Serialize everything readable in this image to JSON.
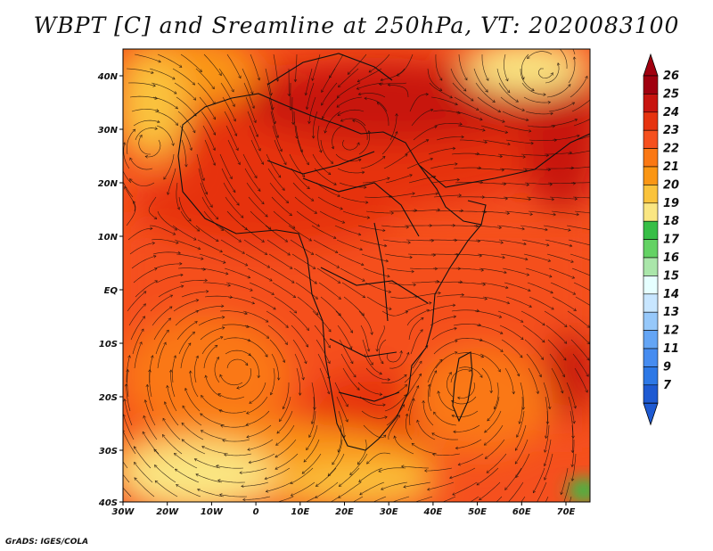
{
  "title": "WBPT [C] and Sreamline at 250hPa, VT: 2020083100",
  "credit": "GrADS: IGES/COLA",
  "latitude_labels": [
    "40N",
    "30N",
    "20N",
    "10N",
    "EQ",
    "10S",
    "20S",
    "30S",
    "40S"
  ],
  "longitude_labels": [
    "30W",
    "20W",
    "10W",
    "0",
    "10E",
    "20E",
    "30E",
    "40E",
    "50E",
    "60E",
    "70E"
  ],
  "colorbar": {
    "labels": [
      "26",
      "25",
      "24",
      "23",
      "22",
      "21",
      "20",
      "19",
      "18",
      "17",
      "16",
      "15",
      "14",
      "13",
      "12",
      "11",
      "9",
      "7"
    ],
    "colors": [
      "#a0000f",
      "#c8140f",
      "#e6330f",
      "#f5501e",
      "#fa7814",
      "#fa9614",
      "#fac33c",
      "#fae682",
      "#37be46",
      "#64d264",
      "#aae6aa",
      "#e6ffff",
      "#c8e6ff",
      "#96c8fa",
      "#64a5f5",
      "#468cf0",
      "#2d78e6",
      "#1e5ad2"
    ]
  },
  "field_colors": {
    "max": "#c8140f",
    "high": "#e6330f",
    "mid": "#f5501e",
    "lower": "#fa7814",
    "warm": "#fa9614",
    "cool": "#fac33c",
    "cold": "#fae682",
    "green": "#37be46"
  }
}
